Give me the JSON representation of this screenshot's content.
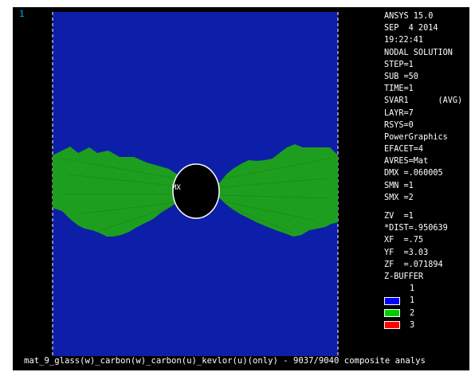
{
  "window_number": "1",
  "legend": {
    "lines": [
      "ANSYS 15.0",
      "SEP  4 2014",
      "19:22:41",
      "NODAL SOLUTION",
      "STEP=1",
      "SUB =50",
      "TIME=1",
      "SVAR1      (AVG)",
      "LAYR=7",
      "RSYS=0",
      "PowerGraphics",
      "EFACET=4",
      "AVRES=Mat",
      "DMX =.060005",
      "SMN =1",
      "SMX =2"
    ],
    "view_lines": [
      "ZV  =1",
      "*DIST=.950639",
      "XF  =.75",
      "YF  =3.03",
      "ZF  =.071894",
      "Z-BUFFER"
    ],
    "contour_top_label": "1",
    "contour_keys": [
      {
        "label": "1",
        "color": "#0000ff"
      },
      {
        "label": "2",
        "color": "#00cc00"
      },
      {
        "label": "3",
        "color": "#ff0000"
      }
    ]
  },
  "plot": {
    "marker_label": "MX",
    "colors": {
      "background": "#000000",
      "laminate": "#0d1ea8",
      "damage": "#1e9e1e",
      "hole": "#000000",
      "edge": "#ffffff"
    }
  },
  "footer": {
    "title": "mat_9_glass(w)_carbon(w)_carbon(u)_kevlor(u)(only) - 9037/9040 composite analys"
  }
}
